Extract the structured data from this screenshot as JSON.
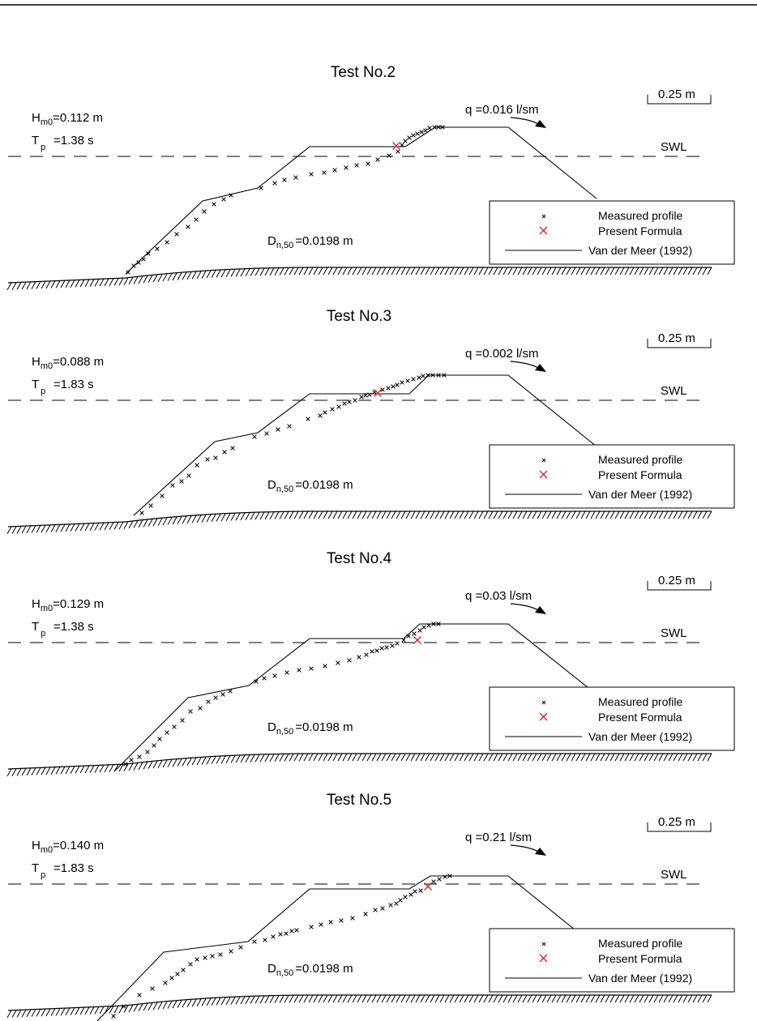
{
  "panels": [
    {
      "title": "Test No.2",
      "Hm0_value": "=0.112 m",
      "Tp_value": "=1.38 s",
      "q_text": "q =0.016 l/sm",
      "dn50_value": "=0.0198 m"
    },
    {
      "title": "Test No.3",
      "Hm0_value": "=0.088 m",
      "Tp_value": "=1.83 s",
      "q_text": "q =0.002 l/sm",
      "dn50_value": "=0.0198 m"
    },
    {
      "title": "Test No.4",
      "Hm0_value": "=0.129 m",
      "Tp_value": "=1.38 s",
      "q_text": "q =0.03 l/sm",
      "dn50_value": "=0.0198 m"
    },
    {
      "title": "Test No.5",
      "Hm0_value": "=0.140 m",
      "Tp_value": "=1.83 s",
      "q_text": "q =0.21 l/sm",
      "dn50_value": "=0.0198 m"
    }
  ],
  "common": {
    "H_letter": "H",
    "H_sub": "m0",
    "T_letter": "T",
    "T_sub": "p",
    "D_letter": "D",
    "D_sub": "n,50",
    "scale_label": "0.25 m",
    "swl_label": "SWL"
  },
  "legend": {
    "measured": "Measured profile",
    "formula": "Present Formula",
    "vdm": "Van der Meer (1992)"
  },
  "colors": {
    "ink": "#000000",
    "formula_marker": "#e02020"
  }
}
